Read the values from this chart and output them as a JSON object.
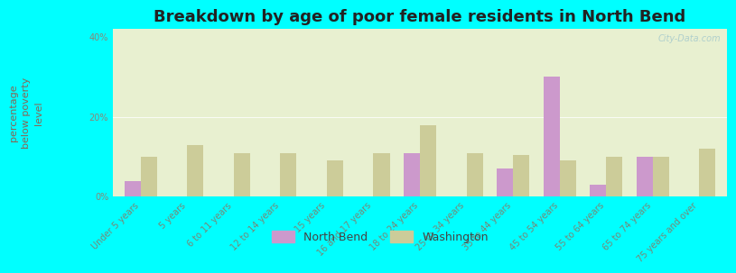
{
  "title": "Breakdown by age of poor female residents in North Bend",
  "categories": [
    "Under 5 years",
    "5 years",
    "6 to 11 years",
    "12 to 14 years",
    "15 years",
    "16 and 17 years",
    "18 to 24 years",
    "25 to 34 years",
    "35 to 44 years",
    "45 to 54 years",
    "55 to 64 years",
    "65 to 74 years",
    "75 years and over"
  ],
  "north_bend": [
    4.0,
    0,
    0,
    0,
    0,
    0,
    11.0,
    0,
    7.0,
    30.0,
    3.0,
    10.0,
    0
  ],
  "washington": [
    10.0,
    13.0,
    11.0,
    11.0,
    9.0,
    11.0,
    18.0,
    11.0,
    10.5,
    9.0,
    10.0,
    10.0,
    12.0
  ],
  "north_bend_color": "#cc99cc",
  "washington_color": "#cccc99",
  "background_color": "#00ffff",
  "plot_bg_color": "#e8f0d0",
  "plot_bg_top": "#ddeedd",
  "ylabel": "percentage\nbelow poverty\nlevel",
  "ylabel_color": "#886655",
  "ylim": [
    0,
    42
  ],
  "yticks": [
    0,
    20,
    40
  ],
  "ytick_labels": [
    "0%",
    "20%",
    "40%"
  ],
  "bar_width": 0.35,
  "title_fontsize": 13,
  "axis_label_fontsize": 8,
  "tick_fontsize": 7,
  "legend_nb_label": "North Bend",
  "legend_wa_label": "Washington",
  "watermark": "City-Data.com",
  "watermark_color": "#aacccc"
}
